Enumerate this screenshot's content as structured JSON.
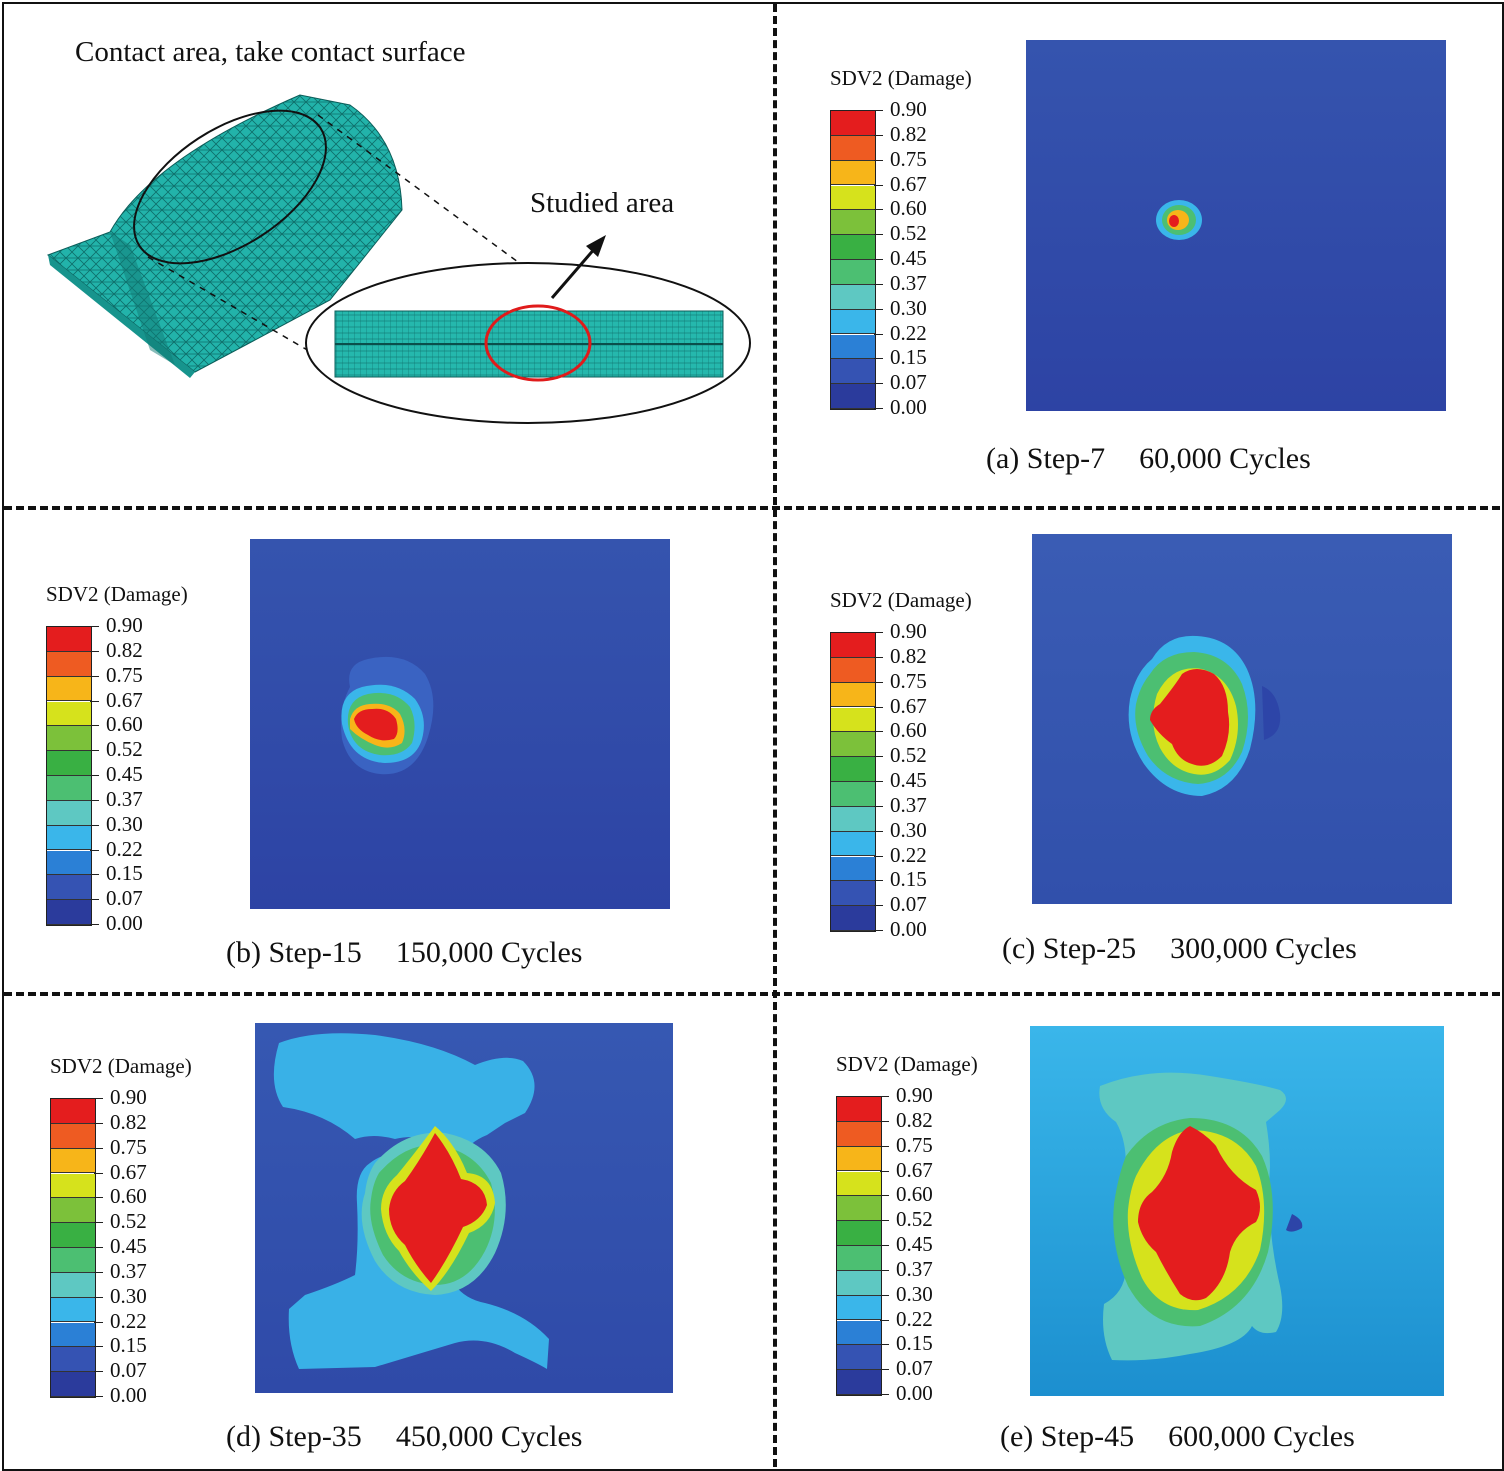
{
  "colors": {
    "scale": [
      "#2b3b9c",
      "#3553b3",
      "#2b80d6",
      "#3ab6ea",
      "#5ec8c2",
      "#4cbf72",
      "#39b043",
      "#7cc13a",
      "#d6e21c",
      "#f7b519",
      "#ee5b22",
      "#e41d1e"
    ],
    "mesh": "#20b2aa",
    "studied_circle": "#e01b1b",
    "background_blue": "#2f4aa8"
  },
  "overview": {
    "title": "Contact area, take contact surface",
    "studied_label": "Studied area"
  },
  "legend": {
    "title": "SDV2 (Damage)",
    "ticks": [
      "0.90",
      "0.82",
      "0.75",
      "0.67",
      "0.60",
      "0.52",
      "0.45",
      "0.37",
      "0.30",
      "0.22",
      "0.15",
      "0.07",
      "0.00"
    ]
  },
  "panels": {
    "a": {
      "label": "(a) Step-7",
      "cycles": "60,000 Cycles"
    },
    "b": {
      "label": "(b) Step-15",
      "cycles": "150,000 Cycles"
    },
    "c": {
      "label": "(c) Step-25",
      "cycles": "300,000 Cycles"
    },
    "d": {
      "label": "(d) Step-35",
      "cycles": "450,000 Cycles"
    },
    "e": {
      "label": "(e) Step-45",
      "cycles": "600,000 Cycles"
    }
  }
}
